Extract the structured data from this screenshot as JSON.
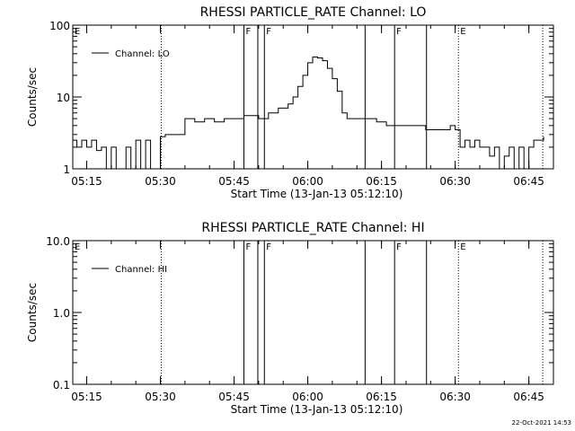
{
  "footer": {
    "timestamp": "22-Oct-2021 14:53"
  },
  "chart_data": [
    {
      "type": "line",
      "title": "RHESSI PARTICLE_RATE Channel: LO",
      "xlabel": "Start Time (13-Jan-13 05:12:10)",
      "ylabel": "Counts/sec",
      "y_scale": "log",
      "xlim": [
        "05:12:10",
        "06:50:00"
      ],
      "ylim": [
        1,
        100
      ],
      "x_ticks": [
        "05:15",
        "05:30",
        "05:45",
        "06:00",
        "06:15",
        "06:30",
        "06:45"
      ],
      "y_ticks": [
        "1",
        "10",
        "100"
      ],
      "legend": {
        "position": "top-left",
        "entries": [
          "Channel: LO"
        ]
      },
      "series": [
        {
          "name": "Channel: LO",
          "x": [
            "05:12:10",
            "05:13:00",
            "05:14:00",
            "05:15:00",
            "05:16:00",
            "05:17:00",
            "05:18:00",
            "05:19:00",
            "05:20:00",
            "05:21:00",
            "05:22:00",
            "05:23:00",
            "05:24:00",
            "05:25:00",
            "05:26:00",
            "05:27:00",
            "05:28:00",
            "05:29:00",
            "05:30:00",
            "05:31:00",
            "05:33:00",
            "05:35:00",
            "05:37:00",
            "05:39:00",
            "05:41:00",
            "05:43:00",
            "05:45:00",
            "05:47:00",
            "05:50:00",
            "05:52:00",
            "05:54:00",
            "05:56:00",
            "05:57:00",
            "05:58:00",
            "05:59:00",
            "06:00:00",
            "06:01:00",
            "06:02:00",
            "06:03:00",
            "06:04:00",
            "06:05:00",
            "06:06:00",
            "06:07:00",
            "06:08:00",
            "06:10:00",
            "06:12:00",
            "06:14:00",
            "06:16:00",
            "06:18:00",
            "06:20:00",
            "06:22:00",
            "06:24:00",
            "06:26:00",
            "06:28:00",
            "06:29:00",
            "06:30:00",
            "06:31:00",
            "06:32:00",
            "06:33:00",
            "06:34:00",
            "06:35:00",
            "06:36:00",
            "06:37:00",
            "06:38:00",
            "06:39:00",
            "06:40:00",
            "06:41:00",
            "06:42:00",
            "06:43:00",
            "06:44:00",
            "06:45:00",
            "06:46:00",
            "06:47:00",
            "06:48:00"
          ],
          "values": [
            2.5,
            2,
            2.5,
            2,
            2.5,
            1.8,
            2,
            1,
            2,
            1,
            1,
            2,
            1,
            2.5,
            1,
            2.5,
            1,
            1,
            2.8,
            3,
            3,
            5,
            4.5,
            5,
            4.5,
            5,
            5,
            5.5,
            5,
            6,
            7,
            8,
            10,
            14,
            20,
            30,
            36,
            35,
            32,
            25,
            18,
            12,
            6,
            5,
            5,
            5,
            4.5,
            4,
            4,
            4,
            4,
            3.5,
            3.5,
            3.5,
            4,
            3.5,
            2,
            2.5,
            2,
            2.5,
            2,
            2,
            1.5,
            2,
            1,
            1.5,
            2,
            1,
            2,
            1,
            2,
            2.5,
            2.5,
            2.8
          ]
        }
      ],
      "vertical_markers": [
        {
          "time": "05:30:10",
          "style": "dotted",
          "label": ""
        },
        {
          "time": "05:47:00",
          "style": "solid",
          "label": "F"
        },
        {
          "time": "05:49:50",
          "style": "solid",
          "label": ""
        },
        {
          "time": "05:51:10",
          "style": "solid",
          "label": "F"
        },
        {
          "time": "06:11:40",
          "style": "solid",
          "label": ""
        },
        {
          "time": "06:17:40",
          "style": "solid",
          "label": "F"
        },
        {
          "time": "06:24:10",
          "style": "solid",
          "label": ""
        },
        {
          "time": "06:30:40",
          "style": "dotted",
          "label": "E"
        },
        {
          "time": "06:47:50",
          "style": "dotted",
          "label": ""
        }
      ],
      "edge_labels": [
        {
          "time": "05:12:10",
          "label": "E"
        }
      ]
    },
    {
      "type": "line",
      "title": "RHESSI PARTICLE_RATE Channel: HI",
      "xlabel": "Start Time (13-Jan-13 05:12:10)",
      "ylabel": "Counts/sec",
      "y_scale": "log",
      "xlim": [
        "05:12:10",
        "06:50:00"
      ],
      "ylim": [
        0.1,
        10
      ],
      "x_ticks": [
        "05:15",
        "05:30",
        "05:45",
        "06:00",
        "06:15",
        "06:30",
        "06:45"
      ],
      "y_ticks": [
        "0.1",
        "1.0",
        "10.0"
      ],
      "legend": {
        "position": "top-left",
        "entries": [
          "Channel: HI"
        ]
      },
      "series": [
        {
          "name": "Channel: HI",
          "x": [],
          "values": []
        }
      ],
      "vertical_markers": [
        {
          "time": "05:30:10",
          "style": "dotted",
          "label": ""
        },
        {
          "time": "05:47:00",
          "style": "solid",
          "label": "F"
        },
        {
          "time": "05:49:50",
          "style": "solid",
          "label": ""
        },
        {
          "time": "05:51:10",
          "style": "solid",
          "label": "F"
        },
        {
          "time": "06:11:40",
          "style": "solid",
          "label": ""
        },
        {
          "time": "06:17:40",
          "style": "solid",
          "label": "F"
        },
        {
          "time": "06:24:10",
          "style": "solid",
          "label": ""
        },
        {
          "time": "06:30:40",
          "style": "dotted",
          "label": "E"
        },
        {
          "time": "06:47:50",
          "style": "dotted",
          "label": ""
        }
      ],
      "edge_labels": [
        {
          "time": "05:12:10",
          "label": "E"
        }
      ]
    }
  ]
}
